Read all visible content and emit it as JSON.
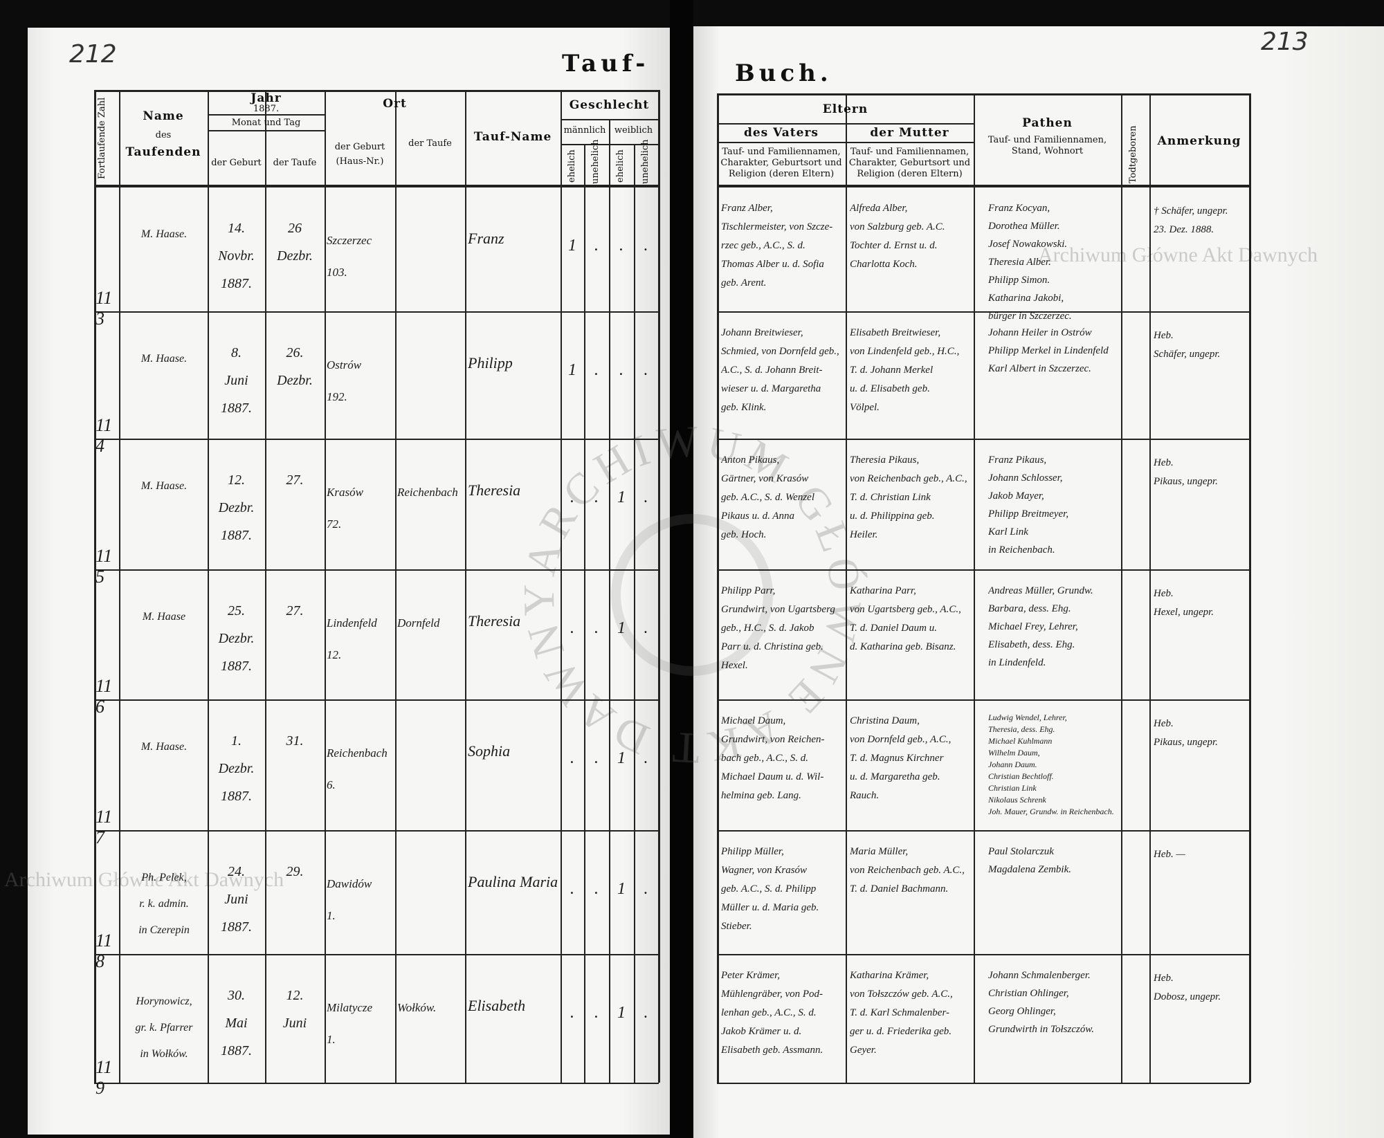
{
  "page_numbers": {
    "left": "212",
    "right": "213"
  },
  "title": {
    "left": "Tauf-",
    "right": "Buch."
  },
  "watermark": "Archiwum Główne Akt Dawnych",
  "seal_text": "ARCHIWUM GŁÓWNE AKT DAWNYCH",
  "headers": {
    "number": "Fortlaufende Zahl",
    "name": "Name",
    "name_des": "des",
    "name_taufenden": "Taufenden",
    "jahr": "Jahr",
    "jahr_value": "1887.",
    "monat_tag": "Monat und Tag",
    "der_geburt": "der Geburt",
    "der_taufe": "der Taufe",
    "ort": "Ort",
    "ort_geburt": "der Geburt",
    "ort_hausnr": "(Haus-Nr.)",
    "ort_taufe": "der Taufe",
    "taufname": "Tauf-Name",
    "geschlecht": "Geschlecht",
    "maennlich": "männlich",
    "weiblich": "weiblich",
    "ehelich": "ehelich",
    "unehelich": "unehelich",
    "eltern": "Eltern",
    "vater": "des Vaters",
    "mutter": "der Mutter",
    "eltern_desc": "Tauf- und Familiennamen, Charakter, Geburtsort und Religion (deren Eltern)",
    "pathen": "Pathen",
    "pathen_desc": "Tauf- und Familiennamen, Stand, Wohnort",
    "todtgeboren": "Todtgeboren",
    "anmerkung": "Anmerkung"
  },
  "entries": [
    {
      "number": "113",
      "name": [
        "M. Haase."
      ],
      "birth": [
        "14.",
        "Novbr.",
        "1887."
      ],
      "baptism": [
        "26",
        "Dezbr."
      ],
      "birth_place": [
        "Szczerzec",
        "103."
      ],
      "baptism_place": [],
      "baptismal_name": "Franz",
      "sex": [
        ". ",
        "1",
        ".",
        "."
      ],
      "sex_marks": [
        "1",
        ".",
        ".",
        "."
      ],
      "father": [
        "Franz Alber,",
        "Tischlermeister, von Szcze-",
        "rzec geb., A.C., S. d.",
        "Thomas Alber u. d. Sofia",
        "geb. Arent."
      ],
      "mother": [
        "Alfreda Alber,",
        "von Salzburg geb. A.C.",
        "Tochter d. Ernst u. d.",
        "Charlotta Koch."
      ],
      "godparents": [
        "Franz Kocyan,",
        "Dorothea Müller.",
        "Josef Nowakowski.",
        "Theresia Alber.",
        "Philipp Simon.",
        "Katharina Jakobi,",
        "bürger in Szczerzec."
      ],
      "stillborn": "",
      "remark": [
        "† Schäfer, ungepr.",
        "23. Dez. 1888."
      ]
    },
    {
      "number": "114",
      "name": [
        "M. Haase."
      ],
      "birth": [
        "8.",
        "Juni",
        "1887."
      ],
      "baptism": [
        "26.",
        "Dezbr."
      ],
      "birth_place": [
        "Ostrów",
        "192."
      ],
      "baptism_place": [],
      "baptismal_name": "Philipp",
      "sex_marks": [
        "1",
        ".",
        ".",
        "."
      ],
      "father": [
        "Johann Breitwieser,",
        "Schmied, von Dornfeld geb.,",
        "A.C., S. d. Johann Breit-",
        "wieser u. d. Margaretha",
        "geb. Klink."
      ],
      "mother": [
        "Elisabeth Breitwieser,",
        "von Lindenfeld geb., H.C.,",
        "T. d. Johann Merkel",
        "u. d. Elisabeth geb.",
        "Völpel."
      ],
      "godparents": [
        "Johann Heiler in Ostrów",
        "Philipp Merkel in Lindenfeld",
        "Karl Albert in Szczerzec."
      ],
      "stillborn": "",
      "remark": [
        "Heb.",
        "Schäfer, ungepr."
      ]
    },
    {
      "number": "115",
      "name": [
        "M. Haase."
      ],
      "birth": [
        "12.",
        "Dezbr.",
        "1887."
      ],
      "baptism": [
        "27."
      ],
      "birth_place": [
        "Krasów",
        "72."
      ],
      "baptism_place": [
        "Reichenbach"
      ],
      "baptismal_name": "Theresia",
      "sex_marks": [
        ".",
        ".",
        "1",
        "."
      ],
      "father": [
        "Anton Pikaus,",
        "Gärtner, von Krasów",
        "geb. A.C., S. d. Wenzel",
        "Pikaus u. d. Anna",
        "geb. Hoch."
      ],
      "mother": [
        "Theresia Pikaus,",
        "von Reichenbach geb., A.C.,",
        "T. d. Christian Link",
        "u. d. Philippina geb.",
        "Heiler."
      ],
      "godparents": [
        "Franz Pikaus,",
        "Johann Schlosser,",
        "Jakob Mayer,",
        "Philipp Breitmeyer,",
        "Karl Link",
        "in Reichenbach."
      ],
      "stillborn": "",
      "remark": [
        "Heb.",
        "Pikaus, ungepr."
      ]
    },
    {
      "number": "116",
      "name": [
        "M. Haase"
      ],
      "birth": [
        "25.",
        "Dezbr.",
        "1887."
      ],
      "baptism": [
        "27."
      ],
      "birth_place": [
        "Lindenfeld",
        "12."
      ],
      "baptism_place": [
        "Dornfeld"
      ],
      "baptismal_name": "Theresia",
      "sex_marks": [
        ".",
        ".",
        "1",
        "."
      ],
      "father": [
        "Philipp Parr,",
        "Grundwirt, von Ugartsberg",
        "geb., H.C., S. d. Jakob",
        "Parr u. d. Christina geb.",
        "Hexel."
      ],
      "mother": [
        "Katharina Parr,",
        "von Ugartsberg geb., A.C.,",
        "T. d. Daniel Daum u.",
        "d. Katharina geb. Bisanz."
      ],
      "godparents": [
        "Andreas Müller, Grundw.",
        "Barbara, dess. Ehg.",
        "Michael Frey, Lehrer,",
        "Elisabeth, dess. Ehg.",
        "in Lindenfeld."
      ],
      "stillborn": "",
      "remark": [
        "Heb.",
        "Hexel, ungepr."
      ]
    },
    {
      "number": "117",
      "name": [
        "M. Haase."
      ],
      "birth": [
        "1.",
        "Dezbr.",
        "1887."
      ],
      "baptism": [
        "31."
      ],
      "birth_place": [
        "Reichenbach",
        "6."
      ],
      "baptism_place": [],
      "baptismal_name": "Sophia",
      "sex_marks": [
        ".",
        ".",
        "1",
        "."
      ],
      "father": [
        "Michael Daum,",
        "Grundwirt, von Reichen-",
        "bach geb., A.C., S. d.",
        "Michael Daum u. d. Wil-",
        "helmina geb. Lang."
      ],
      "mother": [
        "Christina Daum,",
        "von Dornfeld geb., A.C.,",
        "T. d. Magnus Kirchner",
        "u. d. Margaretha geb.",
        "Rauch."
      ],
      "godparents": [
        "Ludwig Wendel, Lehrer,",
        "Theresia, dess. Ehg.",
        "Michael Kuhlmann",
        "Wilhelm Daum,",
        "Johann Daum.",
        "Christian Bechtloff.",
        "Christian Link",
        "Nikolaus Schrenk",
        "Joh. Mauer, Grundw. in Reichenbach."
      ],
      "stillborn": "",
      "remark": [
        "Heb.",
        "Pikaus, ungepr."
      ]
    },
    {
      "number": "118",
      "name": [
        "Ph. Pelek,",
        "r. k. admin.",
        "in Czerepin"
      ],
      "birth": [
        "24.",
        "Juni",
        "1887."
      ],
      "baptism": [
        "29."
      ],
      "birth_place": [
        "Dawidów",
        "1."
      ],
      "baptism_place": [],
      "baptismal_name": "Paulina Maria",
      "sex_marks": [
        ".",
        ".",
        "1",
        "."
      ],
      "father": [
        "Philipp Müller,",
        "Wagner, von Krasów",
        "geb. A.C., S. d. Philipp",
        "Müller u. d. Maria geb.",
        "Stieber."
      ],
      "mother": [
        "Maria Müller,",
        "von Reichenbach geb. A.C.,",
        "T. d. Daniel Bachmann."
      ],
      "godparents": [
        "Paul Stolarczuk",
        "Magdalena Zembik."
      ],
      "stillborn": "",
      "remark": [
        "Heb. —"
      ]
    },
    {
      "number": "119",
      "name": [
        "Horynowicz,",
        "gr. k. Pfarrer",
        "in Wołków."
      ],
      "birth": [
        "30.",
        "Mai",
        "1887."
      ],
      "baptism": [
        "12.",
        "Juni"
      ],
      "birth_place": [
        "Milatycze",
        "1."
      ],
      "baptism_place": [
        "Wołków."
      ],
      "baptismal_name": "Elisabeth",
      "sex_marks": [
        ".",
        ".",
        "1",
        "."
      ],
      "father": [
        "Peter Krämer,",
        "Mühlengräber, von Pod-",
        "lenhan geb., A.C., S. d.",
        "Jakob Krämer u. d.",
        "Elisabeth geb. Assmann."
      ],
      "mother": [
        "Katharina Krämer,",
        "von Tołszczów geb. A.C.,",
        "T. d. Karl Schmalenber-",
        "ger u. d. Friederika geb.",
        "Geyer."
      ],
      "godparents": [
        "Johann Schmalenberger.",
        "Christian Ohlinger,",
        "Georg Ohlinger,",
        "Grundwirth in Tołszczów."
      ],
      "stillborn": "",
      "remark": [
        "Heb.",
        "Dobosz, ungepr."
      ]
    }
  ]
}
